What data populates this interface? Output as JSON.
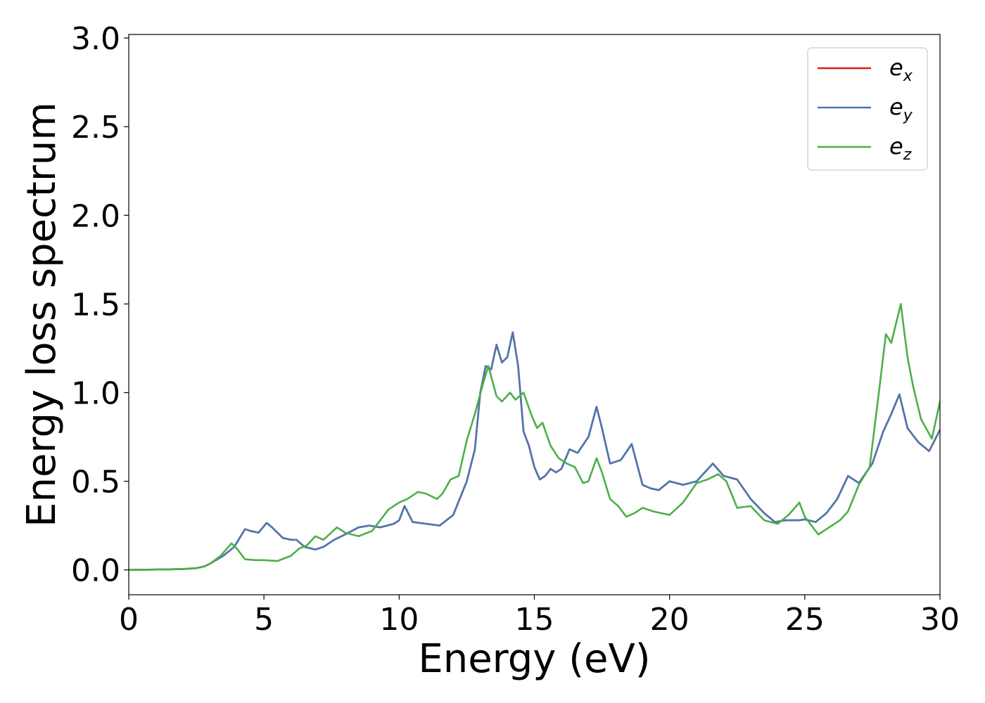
{
  "chart_data": {
    "type": "line",
    "title": "",
    "xlabel": "Energy (eV)",
    "ylabel": "Energy loss spectrum",
    "xlim": [
      0,
      30
    ],
    "ylim": [
      -0.14,
      3.02
    ],
    "xticks": [
      0,
      5,
      10,
      15,
      20,
      25,
      30
    ],
    "xtick_labels": [
      "0",
      "5",
      "10",
      "15",
      "20",
      "25",
      "30"
    ],
    "yticks": [
      0.0,
      0.5,
      1.0,
      1.5,
      2.0,
      2.5,
      3.0
    ],
    "ytick_labels": [
      "0.0",
      "0.5",
      "1.0",
      "1.5",
      "2.0",
      "2.5",
      "3.0"
    ],
    "grid": false,
    "legend_position": "top-right",
    "series": [
      {
        "name": "e_x",
        "legend_base": "e",
        "legend_sub": "x",
        "color": "#e41a1c",
        "points": [
          [
            0,
            0
          ],
          [
            1,
            0.002
          ],
          [
            2,
            0.005
          ],
          [
            2.5,
            0.01
          ],
          [
            2.8,
            0.02
          ],
          [
            3.0,
            0.035
          ],
          [
            3.5,
            0.08
          ],
          [
            3.9,
            0.13
          ],
          [
            4.1,
            0.18
          ],
          [
            4.3,
            0.23
          ],
          [
            4.5,
            0.22
          ],
          [
            4.8,
            0.21
          ],
          [
            5.1,
            0.265
          ],
          [
            5.3,
            0.24
          ],
          [
            5.7,
            0.18
          ],
          [
            6.0,
            0.17
          ],
          [
            6.2,
            0.17
          ],
          [
            6.5,
            0.13
          ],
          [
            6.9,
            0.115
          ],
          [
            7.2,
            0.13
          ],
          [
            7.6,
            0.17
          ],
          [
            8.0,
            0.2
          ],
          [
            8.5,
            0.24
          ],
          [
            8.9,
            0.25
          ],
          [
            9.3,
            0.24
          ],
          [
            9.8,
            0.26
          ],
          [
            10.0,
            0.28
          ],
          [
            10.2,
            0.36
          ],
          [
            10.5,
            0.27
          ],
          [
            11.0,
            0.26
          ],
          [
            11.5,
            0.25
          ],
          [
            12.0,
            0.31
          ],
          [
            12.5,
            0.5
          ],
          [
            12.8,
            0.68
          ],
          [
            13.0,
            1.0
          ],
          [
            13.2,
            1.15
          ],
          [
            13.4,
            1.13
          ],
          [
            13.6,
            1.27
          ],
          [
            13.8,
            1.17
          ],
          [
            14.0,
            1.2
          ],
          [
            14.2,
            1.34
          ],
          [
            14.4,
            1.15
          ],
          [
            14.6,
            0.78
          ],
          [
            14.8,
            0.7
          ],
          [
            15.0,
            0.58
          ],
          [
            15.2,
            0.51
          ],
          [
            15.4,
            0.53
          ],
          [
            15.6,
            0.57
          ],
          [
            15.8,
            0.55
          ],
          [
            16.0,
            0.57
          ],
          [
            16.3,
            0.68
          ],
          [
            16.6,
            0.66
          ],
          [
            17.0,
            0.75
          ],
          [
            17.3,
            0.92
          ],
          [
            17.5,
            0.8
          ],
          [
            17.8,
            0.6
          ],
          [
            18.2,
            0.62
          ],
          [
            18.6,
            0.71
          ],
          [
            19.0,
            0.48
          ],
          [
            19.3,
            0.46
          ],
          [
            19.6,
            0.45
          ],
          [
            20.0,
            0.5
          ],
          [
            20.5,
            0.48
          ],
          [
            21.0,
            0.5
          ],
          [
            21.6,
            0.6
          ],
          [
            22.0,
            0.53
          ],
          [
            22.5,
            0.51
          ],
          [
            23.0,
            0.4
          ],
          [
            23.5,
            0.32
          ],
          [
            23.9,
            0.27
          ],
          [
            24.3,
            0.28
          ],
          [
            24.8,
            0.28
          ],
          [
            25.0,
            0.285
          ],
          [
            25.4,
            0.27
          ],
          [
            25.8,
            0.32
          ],
          [
            26.2,
            0.4
          ],
          [
            26.6,
            0.53
          ],
          [
            27.0,
            0.49
          ],
          [
            27.5,
            0.6
          ],
          [
            27.9,
            0.78
          ],
          [
            28.2,
            0.88
          ],
          [
            28.5,
            0.99
          ],
          [
            28.8,
            0.8
          ],
          [
            29.2,
            0.72
          ],
          [
            29.6,
            0.67
          ],
          [
            30,
            0.79
          ]
        ]
      },
      {
        "name": "e_y",
        "legend_base": "e",
        "legend_sub": "y",
        "color": "#4a78b0",
        "points": [
          [
            0,
            0
          ],
          [
            1,
            0.002
          ],
          [
            2,
            0.005
          ],
          [
            2.5,
            0.01
          ],
          [
            2.8,
            0.02
          ],
          [
            3.0,
            0.035
          ],
          [
            3.5,
            0.08
          ],
          [
            3.9,
            0.13
          ],
          [
            4.1,
            0.18
          ],
          [
            4.3,
            0.23
          ],
          [
            4.5,
            0.22
          ],
          [
            4.8,
            0.21
          ],
          [
            5.1,
            0.265
          ],
          [
            5.3,
            0.24
          ],
          [
            5.7,
            0.18
          ],
          [
            6.0,
            0.17
          ],
          [
            6.2,
            0.17
          ],
          [
            6.5,
            0.13
          ],
          [
            6.9,
            0.115
          ],
          [
            7.2,
            0.13
          ],
          [
            7.6,
            0.17
          ],
          [
            8.0,
            0.2
          ],
          [
            8.5,
            0.24
          ],
          [
            8.9,
            0.25
          ],
          [
            9.3,
            0.24
          ],
          [
            9.8,
            0.26
          ],
          [
            10.0,
            0.28
          ],
          [
            10.2,
            0.36
          ],
          [
            10.5,
            0.27
          ],
          [
            11.0,
            0.26
          ],
          [
            11.5,
            0.25
          ],
          [
            12.0,
            0.31
          ],
          [
            12.5,
            0.5
          ],
          [
            12.8,
            0.68
          ],
          [
            13.0,
            1.0
          ],
          [
            13.2,
            1.15
          ],
          [
            13.4,
            1.13
          ],
          [
            13.6,
            1.27
          ],
          [
            13.8,
            1.17
          ],
          [
            14.0,
            1.2
          ],
          [
            14.2,
            1.34
          ],
          [
            14.4,
            1.15
          ],
          [
            14.6,
            0.78
          ],
          [
            14.8,
            0.7
          ],
          [
            15.0,
            0.58
          ],
          [
            15.2,
            0.51
          ],
          [
            15.4,
            0.53
          ],
          [
            15.6,
            0.57
          ],
          [
            15.8,
            0.55
          ],
          [
            16.0,
            0.57
          ],
          [
            16.3,
            0.68
          ],
          [
            16.6,
            0.66
          ],
          [
            17.0,
            0.75
          ],
          [
            17.3,
            0.92
          ],
          [
            17.5,
            0.8
          ],
          [
            17.8,
            0.6
          ],
          [
            18.2,
            0.62
          ],
          [
            18.6,
            0.71
          ],
          [
            19.0,
            0.48
          ],
          [
            19.3,
            0.46
          ],
          [
            19.6,
            0.45
          ],
          [
            20.0,
            0.5
          ],
          [
            20.5,
            0.48
          ],
          [
            21.0,
            0.5
          ],
          [
            21.6,
            0.6
          ],
          [
            22.0,
            0.53
          ],
          [
            22.5,
            0.51
          ],
          [
            23.0,
            0.4
          ],
          [
            23.5,
            0.32
          ],
          [
            23.9,
            0.27
          ],
          [
            24.3,
            0.28
          ],
          [
            24.8,
            0.28
          ],
          [
            25.0,
            0.285
          ],
          [
            25.4,
            0.27
          ],
          [
            25.8,
            0.32
          ],
          [
            26.2,
            0.4
          ],
          [
            26.6,
            0.53
          ],
          [
            27.0,
            0.49
          ],
          [
            27.5,
            0.6
          ],
          [
            27.9,
            0.78
          ],
          [
            28.2,
            0.88
          ],
          [
            28.5,
            0.99
          ],
          [
            28.8,
            0.8
          ],
          [
            29.2,
            0.72
          ],
          [
            29.6,
            0.67
          ],
          [
            30,
            0.79
          ]
        ]
      },
      {
        "name": "e_z",
        "legend_base": "e",
        "legend_sub": "z",
        "color": "#4daf4a",
        "points": [
          [
            0,
            0
          ],
          [
            1,
            0.002
          ],
          [
            2,
            0.005
          ],
          [
            2.5,
            0.01
          ],
          [
            2.8,
            0.02
          ],
          [
            3.0,
            0.035
          ],
          [
            3.4,
            0.08
          ],
          [
            3.8,
            0.15
          ],
          [
            4.0,
            0.12
          ],
          [
            4.3,
            0.06
          ],
          [
            4.7,
            0.055
          ],
          [
            5.0,
            0.055
          ],
          [
            5.5,
            0.05
          ],
          [
            6.0,
            0.08
          ],
          [
            6.3,
            0.12
          ],
          [
            6.6,
            0.14
          ],
          [
            6.9,
            0.19
          ],
          [
            7.2,
            0.17
          ],
          [
            7.7,
            0.24
          ],
          [
            8.0,
            0.21
          ],
          [
            8.5,
            0.19
          ],
          [
            9.0,
            0.22
          ],
          [
            9.6,
            0.34
          ],
          [
            10.0,
            0.38
          ],
          [
            10.3,
            0.4
          ],
          [
            10.7,
            0.44
          ],
          [
            11.0,
            0.43
          ],
          [
            11.4,
            0.4
          ],
          [
            11.6,
            0.43
          ],
          [
            11.9,
            0.51
          ],
          [
            12.2,
            0.53
          ],
          [
            12.5,
            0.73
          ],
          [
            12.8,
            0.88
          ],
          [
            13.1,
            1.05
          ],
          [
            13.3,
            1.15
          ],
          [
            13.6,
            0.98
          ],
          [
            13.8,
            0.95
          ],
          [
            14.1,
            1.0
          ],
          [
            14.3,
            0.96
          ],
          [
            14.6,
            1.0
          ],
          [
            14.9,
            0.87
          ],
          [
            15.1,
            0.8
          ],
          [
            15.3,
            0.83
          ],
          [
            15.6,
            0.7
          ],
          [
            15.9,
            0.63
          ],
          [
            16.2,
            0.6
          ],
          [
            16.5,
            0.58
          ],
          [
            16.8,
            0.49
          ],
          [
            17.0,
            0.5
          ],
          [
            17.3,
            0.63
          ],
          [
            17.5,
            0.55
          ],
          [
            17.8,
            0.4
          ],
          [
            18.1,
            0.36
          ],
          [
            18.4,
            0.3
          ],
          [
            18.7,
            0.32
          ],
          [
            19.0,
            0.35
          ],
          [
            19.4,
            0.33
          ],
          [
            19.7,
            0.32
          ],
          [
            20.0,
            0.31
          ],
          [
            20.5,
            0.38
          ],
          [
            21.0,
            0.49
          ],
          [
            21.4,
            0.51
          ],
          [
            21.8,
            0.54
          ],
          [
            22.1,
            0.5
          ],
          [
            22.5,
            0.35
          ],
          [
            23.0,
            0.36
          ],
          [
            23.5,
            0.28
          ],
          [
            24.0,
            0.26
          ],
          [
            24.4,
            0.31
          ],
          [
            24.8,
            0.38
          ],
          [
            25.0,
            0.3
          ],
          [
            25.5,
            0.2
          ],
          [
            25.9,
            0.24
          ],
          [
            26.3,
            0.28
          ],
          [
            26.6,
            0.33
          ],
          [
            27.0,
            0.48
          ],
          [
            27.4,
            0.58
          ],
          [
            27.7,
            0.95
          ],
          [
            28.0,
            1.33
          ],
          [
            28.2,
            1.28
          ],
          [
            28.55,
            1.5
          ],
          [
            28.8,
            1.2
          ],
          [
            29.0,
            1.04
          ],
          [
            29.3,
            0.85
          ],
          [
            29.7,
            0.74
          ],
          [
            30,
            0.95
          ]
        ]
      }
    ]
  }
}
